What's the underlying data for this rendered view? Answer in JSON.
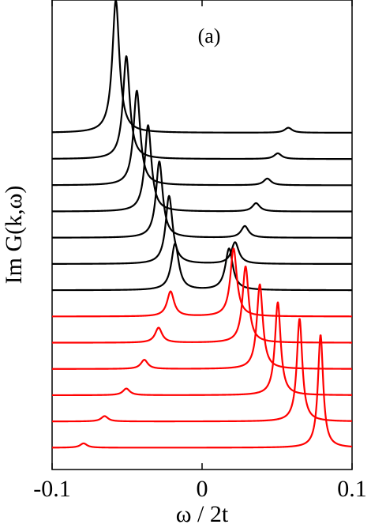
{
  "chart_data": {
    "type": "line",
    "panel_label": "(a)",
    "xlabel": "ω / 2t",
    "ylabel": "Im G(k,ω)",
    "xlim": [
      -0.1,
      0.1
    ],
    "x_ticks": [
      -0.1,
      0,
      0.1
    ],
    "x_tick_labels": [
      "-0.1",
      "0",
      "0.1"
    ],
    "grid": false,
    "legend": "none",
    "colors": {
      "upper_group": "#000000",
      "lower_group": "#ff0000"
    },
    "series": [
      {
        "color": "#000000",
        "peaks": [
          {
            "w": -0.0575,
            "h": 8.0,
            "gamma": 0.0028
          },
          {
            "w": 0.0575,
            "h": 0.3,
            "gamma": 0.003
          }
        ]
      },
      {
        "color": "#000000",
        "peaks": [
          {
            "w": -0.0505,
            "h": 6.2,
            "gamma": 0.0027
          },
          {
            "w": 0.0505,
            "h": 0.34,
            "gamma": 0.003
          }
        ]
      },
      {
        "color": "#000000",
        "peaks": [
          {
            "w": -0.0435,
            "h": 5.7,
            "gamma": 0.0027
          },
          {
            "w": 0.0435,
            "h": 0.4,
            "gamma": 0.003
          }
        ]
      },
      {
        "color": "#000000",
        "peaks": [
          {
            "w": -0.036,
            "h": 5.2,
            "gamma": 0.0027
          },
          {
            "w": 0.036,
            "h": 0.5,
            "gamma": 0.003
          }
        ]
      },
      {
        "color": "#000000",
        "peaks": [
          {
            "w": -0.0285,
            "h": 4.6,
            "gamma": 0.0027
          },
          {
            "w": 0.0285,
            "h": 0.7,
            "gamma": 0.003
          }
        ]
      },
      {
        "color": "#000000",
        "peaks": [
          {
            "w": -0.022,
            "h": 4.1,
            "gamma": 0.0028
          },
          {
            "w": 0.022,
            "h": 1.3,
            "gamma": 0.003
          }
        ]
      },
      {
        "color": "#000000",
        "peaks": [
          {
            "w": -0.018,
            "h": 2.8,
            "gamma": 0.003
          },
          {
            "w": 0.018,
            "h": 2.5,
            "gamma": 0.003
          }
        ]
      },
      {
        "color": "#ff0000",
        "peaks": [
          {
            "w": -0.021,
            "h": 1.5,
            "gamma": 0.0028
          },
          {
            "w": 0.021,
            "h": 4.1,
            "gamma": 0.0026
          }
        ]
      },
      {
        "color": "#ff0000",
        "peaks": [
          {
            "w": -0.029,
            "h": 0.9,
            "gamma": 0.0028
          },
          {
            "w": 0.029,
            "h": 4.6,
            "gamma": 0.0025
          }
        ]
      },
      {
        "color": "#ff0000",
        "peaks": [
          {
            "w": -0.0385,
            "h": 0.55,
            "gamma": 0.0028
          },
          {
            "w": 0.0385,
            "h": 5.1,
            "gamma": 0.0024
          }
        ]
      },
      {
        "color": "#ff0000",
        "peaks": [
          {
            "w": -0.0505,
            "h": 0.4,
            "gamma": 0.0028
          },
          {
            "w": 0.0505,
            "h": 5.6,
            "gamma": 0.0023
          }
        ]
      },
      {
        "color": "#ff0000",
        "peaks": [
          {
            "w": -0.065,
            "h": 0.32,
            "gamma": 0.0028
          },
          {
            "w": 0.065,
            "h": 6.2,
            "gamma": 0.0022
          }
        ]
      },
      {
        "color": "#ff0000",
        "peaks": [
          {
            "w": -0.079,
            "h": 0.26,
            "gamma": 0.0028
          },
          {
            "w": 0.079,
            "h": 6.8,
            "gamma": 0.0021
          }
        ]
      }
    ]
  }
}
